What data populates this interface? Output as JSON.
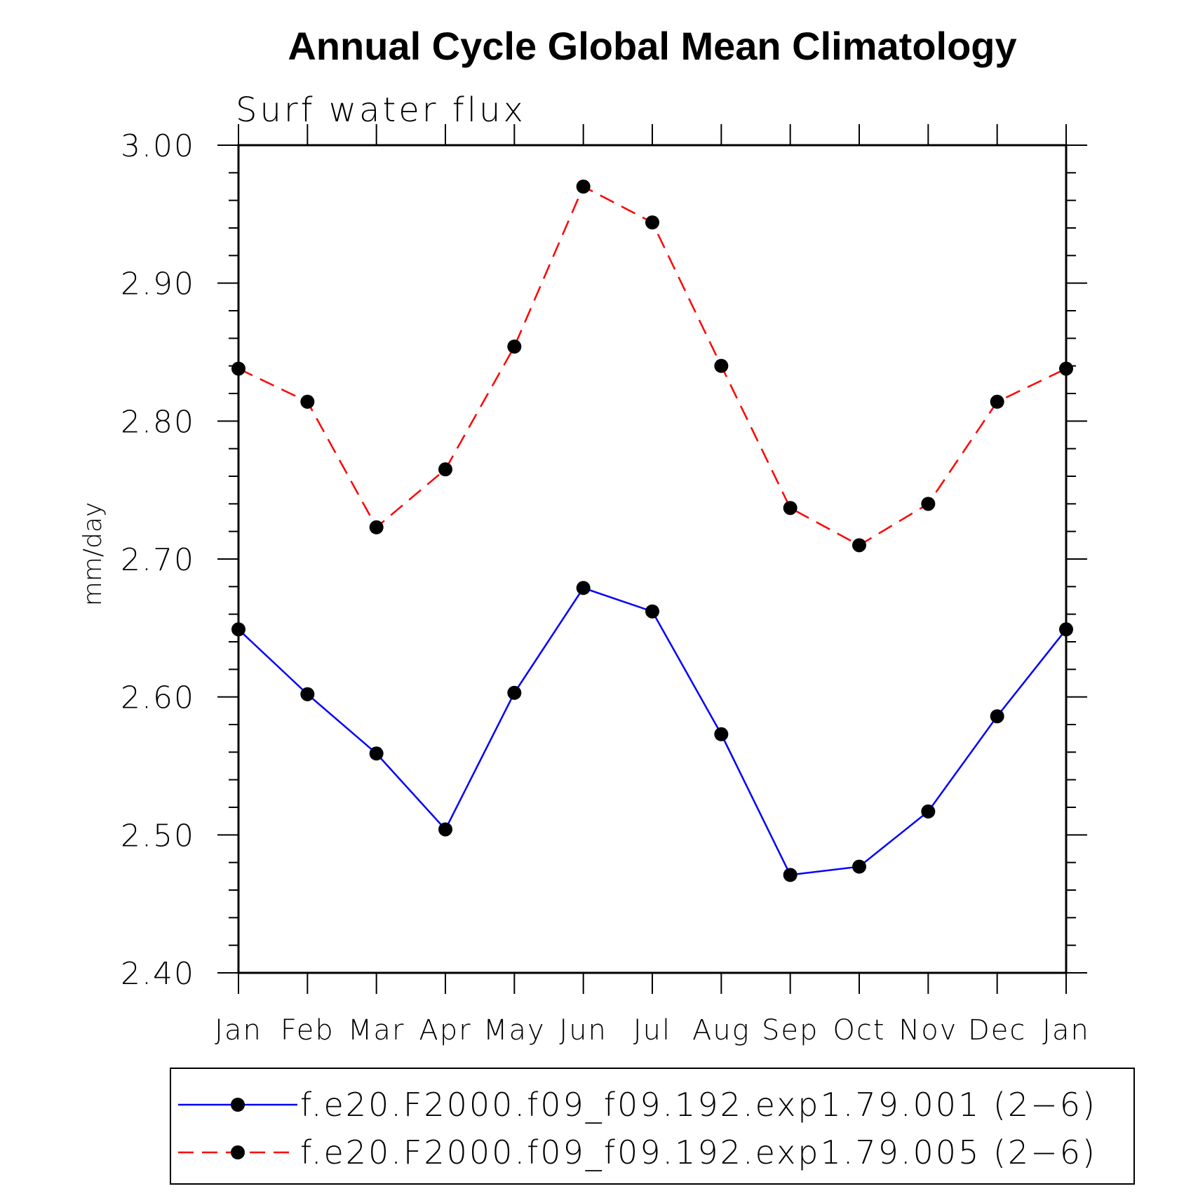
{
  "chart_data": {
    "type": "line",
    "title": "Annual Cycle Global Mean Climatology",
    "subtitle": "Surf water flux",
    "xlabel": "",
    "ylabel": "mm/day",
    "ylim": [
      2.4,
      3.0
    ],
    "yticks": [
      "2.40",
      "2.50",
      "2.60",
      "2.70",
      "2.80",
      "2.90",
      "3.00"
    ],
    "categories": [
      "Jan",
      "Feb",
      "Mar",
      "Apr",
      "May",
      "Jun",
      "Jul",
      "Aug",
      "Sep",
      "Oct",
      "Nov",
      "Dec",
      "Jan"
    ],
    "grid": false,
    "legend_position": "bottom",
    "series": [
      {
        "name": "f.e20.F2000.f09_f09.192.exp1.79.001 (2−6)",
        "color": "#0000ff",
        "line_style": "solid",
        "marker": "filled-circle",
        "values": [
          2.649,
          2.602,
          2.559,
          2.504,
          2.603,
          2.679,
          2.662,
          2.573,
          2.471,
          2.477,
          2.517,
          2.586,
          2.649
        ]
      },
      {
        "name": "f.e20.F2000.f09_f09.192.exp1.79.005 (2−6)",
        "color": "#ff0000",
        "line_style": "dashed",
        "marker": "filled-circle",
        "values": [
          2.838,
          2.814,
          2.723,
          2.765,
          2.854,
          2.97,
          2.944,
          2.84,
          2.737,
          2.71,
          2.74,
          2.814,
          2.838
        ]
      }
    ]
  }
}
